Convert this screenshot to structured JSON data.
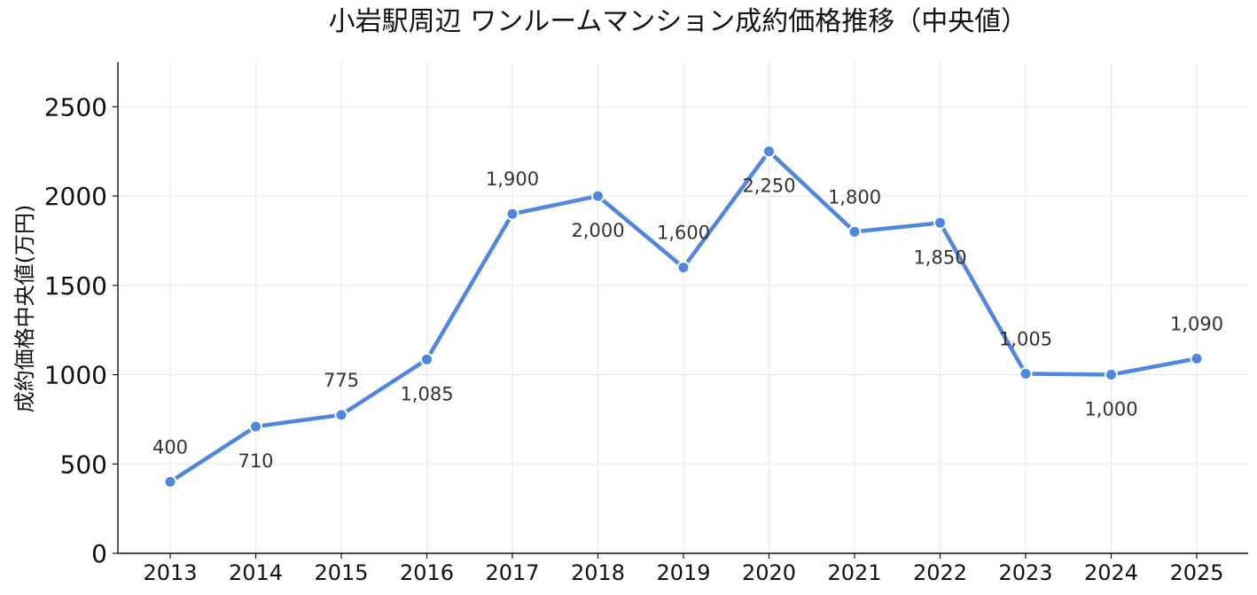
{
  "chart_data": {
    "type": "line",
    "title": "小岩駅周辺 ワンルームマンション成約価格推移（中央値）",
    "xlabel": "",
    "ylabel": "成約価格中央値(万円)",
    "ylim": [
      0,
      2750
    ],
    "yticks": [
      0,
      500,
      1000,
      1500,
      2000,
      2500
    ],
    "grid": true,
    "legend": "none",
    "categories": [
      "2013",
      "2014",
      "2015",
      "2016",
      "2017",
      "2018",
      "2019",
      "2020",
      "2021",
      "2022",
      "2023",
      "2024",
      "2025"
    ],
    "series": [
      {
        "values": [
          400,
          710,
          775,
          1085,
          1900,
          2000,
          1600,
          2250,
          1800,
          1850,
          1005,
          1000,
          1090
        ],
        "labels": [
          "400",
          "710",
          "775",
          "1,085",
          "1,900",
          "2,000",
          "1,600",
          "2,250",
          "1,800",
          "1,850",
          "1,005",
          "1,000",
          "1,090"
        ],
        "label_positions": [
          "above",
          "below",
          "above",
          "below",
          "above",
          "below",
          "above",
          "below",
          "above",
          "below",
          "above",
          "below",
          "above"
        ],
        "color": "#4f86e0"
      }
    ]
  }
}
